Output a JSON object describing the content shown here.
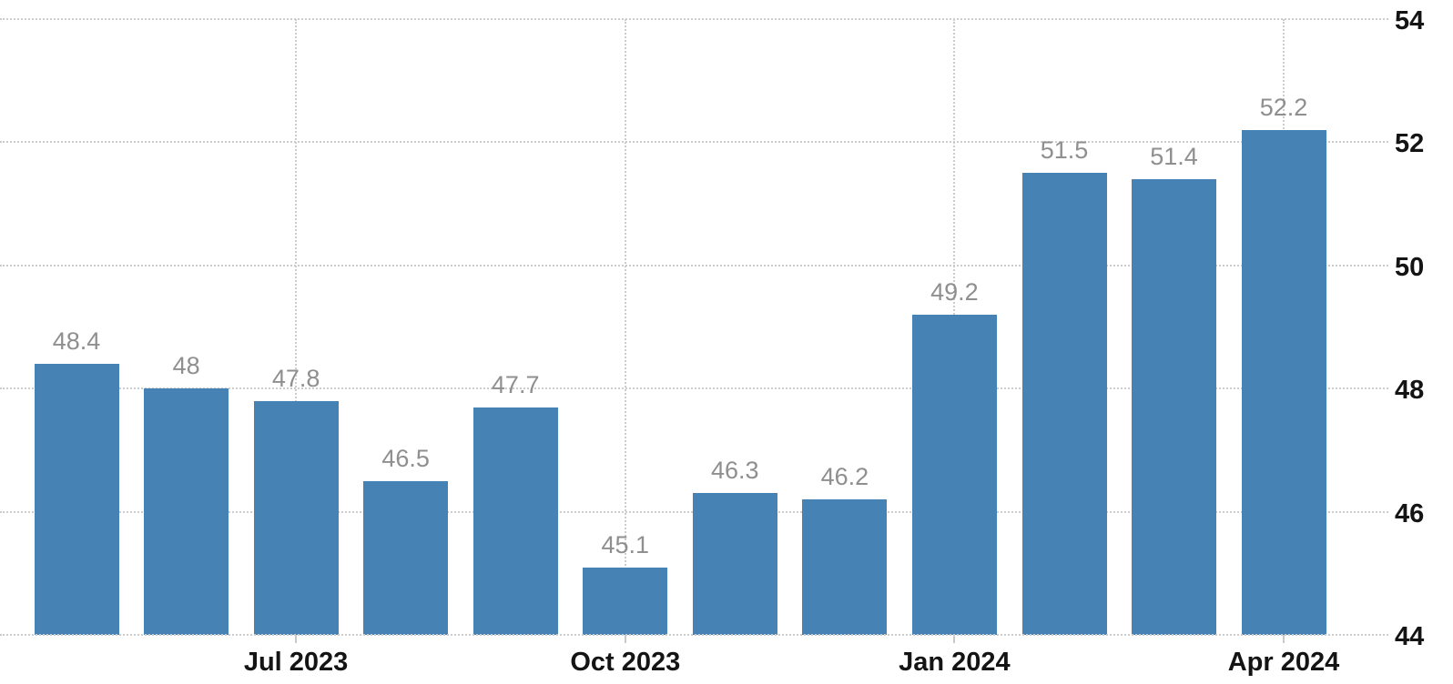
{
  "chart_data": {
    "type": "bar",
    "title": "",
    "xlabel": "",
    "ylabel": "",
    "values": [
      48.4,
      48,
      47.8,
      46.5,
      47.7,
      45.1,
      46.3,
      46.2,
      49.2,
      51.5,
      51.4,
      52.2
    ],
    "bar_labels": [
      "48.4",
      "48",
      "47.8",
      "46.5",
      "47.7",
      "45.1",
      "46.3",
      "46.2",
      "49.2",
      "51.5",
      "51.4",
      "52.2"
    ],
    "x_ticks": [
      {
        "bar_index": 2,
        "label": "Jul 2023"
      },
      {
        "bar_index": 5,
        "label": "Oct 2023"
      },
      {
        "bar_index": 8,
        "label": "Jan 2024"
      },
      {
        "bar_index": 11,
        "label": "Apr 2024"
      }
    ],
    "y_ticks": [
      "44",
      "46",
      "48",
      "50",
      "52",
      "54"
    ],
    "ylim": [
      44,
      54
    ],
    "y_axis_side": "right",
    "grid": "dotted horizontal lines at each y tick; dotted vertical lines at labeled x ticks; drawn behind bars",
    "legend": "none",
    "colors": {
      "bar": "#4682b4",
      "value_label": "#8f8f8f",
      "axis_label": "#141414",
      "gridline": "#cccccc",
      "tick": "#c9c9c9",
      "background": "#ffffff"
    }
  }
}
